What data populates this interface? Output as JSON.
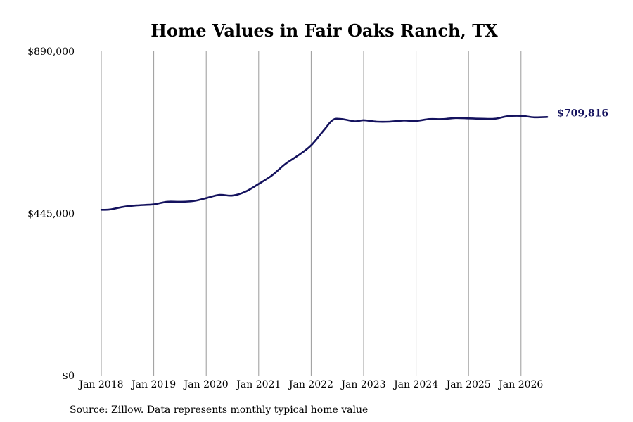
{
  "chart_data": {
    "type": "line",
    "title": "Home Values in Fair Oaks Ranch, TX",
    "xlabel": "",
    "ylabel": "",
    "x_ticks": [
      "Jan 2018",
      "Jan 2019",
      "Jan 2020",
      "Jan 2021",
      "Jan 2022",
      "Jan 2023",
      "Jan 2024",
      "Jan 2025",
      "Jan 2026"
    ],
    "x_range": [
      "2018-01",
      "2026-07"
    ],
    "y_ticks": [
      {
        "value": 0,
        "label": "$0"
      },
      {
        "value": 445000,
        "label": "$445,000"
      },
      {
        "value": 890000,
        "label": "$890,000"
      }
    ],
    "ylim": [
      0,
      890000
    ],
    "grid": {
      "vertical": true,
      "horizontal": false
    },
    "line_color": "#14125e",
    "series": [
      {
        "end_label": "$709,816",
        "points": [
          {
            "x": "2018-01",
            "y": 455000
          },
          {
            "x": "2018-03",
            "y": 456000
          },
          {
            "x": "2018-06",
            "y": 463000
          },
          {
            "x": "2018-09",
            "y": 467000
          },
          {
            "x": "2019-01",
            "y": 470000
          },
          {
            "x": "2019-04",
            "y": 477000
          },
          {
            "x": "2019-07",
            "y": 477000
          },
          {
            "x": "2019-10",
            "y": 479000
          },
          {
            "x": "2020-01",
            "y": 487000
          },
          {
            "x": "2020-04",
            "y": 496000
          },
          {
            "x": "2020-07",
            "y": 494000
          },
          {
            "x": "2020-10",
            "y": 505000
          },
          {
            "x": "2021-01",
            "y": 526000
          },
          {
            "x": "2021-04",
            "y": 549000
          },
          {
            "x": "2021-07",
            "y": 580000
          },
          {
            "x": "2021-10",
            "y": 604000
          },
          {
            "x": "2022-01",
            "y": 632000
          },
          {
            "x": "2022-04",
            "y": 675000
          },
          {
            "x": "2022-06",
            "y": 702000
          },
          {
            "x": "2022-08",
            "y": 704000
          },
          {
            "x": "2022-11",
            "y": 698000
          },
          {
            "x": "2023-01",
            "y": 701000
          },
          {
            "x": "2023-04",
            "y": 697000
          },
          {
            "x": "2023-07",
            "y": 697000
          },
          {
            "x": "2023-10",
            "y": 700000
          },
          {
            "x": "2024-01",
            "y": 699000
          },
          {
            "x": "2024-04",
            "y": 704000
          },
          {
            "x": "2024-07",
            "y": 704000
          },
          {
            "x": "2024-10",
            "y": 707000
          },
          {
            "x": "2025-01",
            "y": 706000
          },
          {
            "x": "2025-04",
            "y": 705000
          },
          {
            "x": "2025-07",
            "y": 705000
          },
          {
            "x": "2025-10",
            "y": 712000
          },
          {
            "x": "2026-01",
            "y": 713000
          },
          {
            "x": "2026-04",
            "y": 709000
          },
          {
            "x": "2026-07",
            "y": 709816
          }
        ]
      }
    ]
  },
  "footer": {
    "source": "Source: Zillow. Data represents monthly typical home value"
  }
}
